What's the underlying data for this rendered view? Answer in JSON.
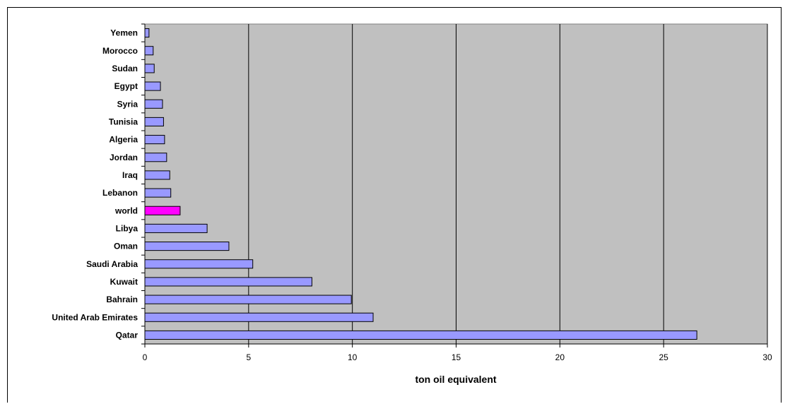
{
  "chart_data": {
    "type": "bar",
    "orientation": "horizontal",
    "title": "",
    "xlabel": "ton oil equivalent",
    "ylabel": "",
    "xlim": [
      0,
      30
    ],
    "xticks": [
      0,
      5,
      10,
      15,
      20,
      25,
      30
    ],
    "grid": "vertical major gridlines",
    "legend": "none",
    "plot_background": "#c0c0c0",
    "bar_color": "#9999ff",
    "highlight_color": "#ff00ff",
    "highlight_category": "world",
    "categories": [
      "Yemen",
      "Morocco",
      "Sudan",
      "Egypt",
      "Syria",
      "Tunisia",
      "Algeria",
      "Jordan",
      "Iraq",
      "Lebanon",
      "world",
      "Libya",
      "Oman",
      "Saudi Arabia",
      "Kuwait",
      "Bahrain",
      "United Arab Emirates",
      "Qatar"
    ],
    "values": [
      0.2,
      0.4,
      0.45,
      0.75,
      0.85,
      0.9,
      0.95,
      1.05,
      1.2,
      1.25,
      1.7,
      3.0,
      4.05,
      5.2,
      8.05,
      9.95,
      11.0,
      26.6
    ]
  }
}
